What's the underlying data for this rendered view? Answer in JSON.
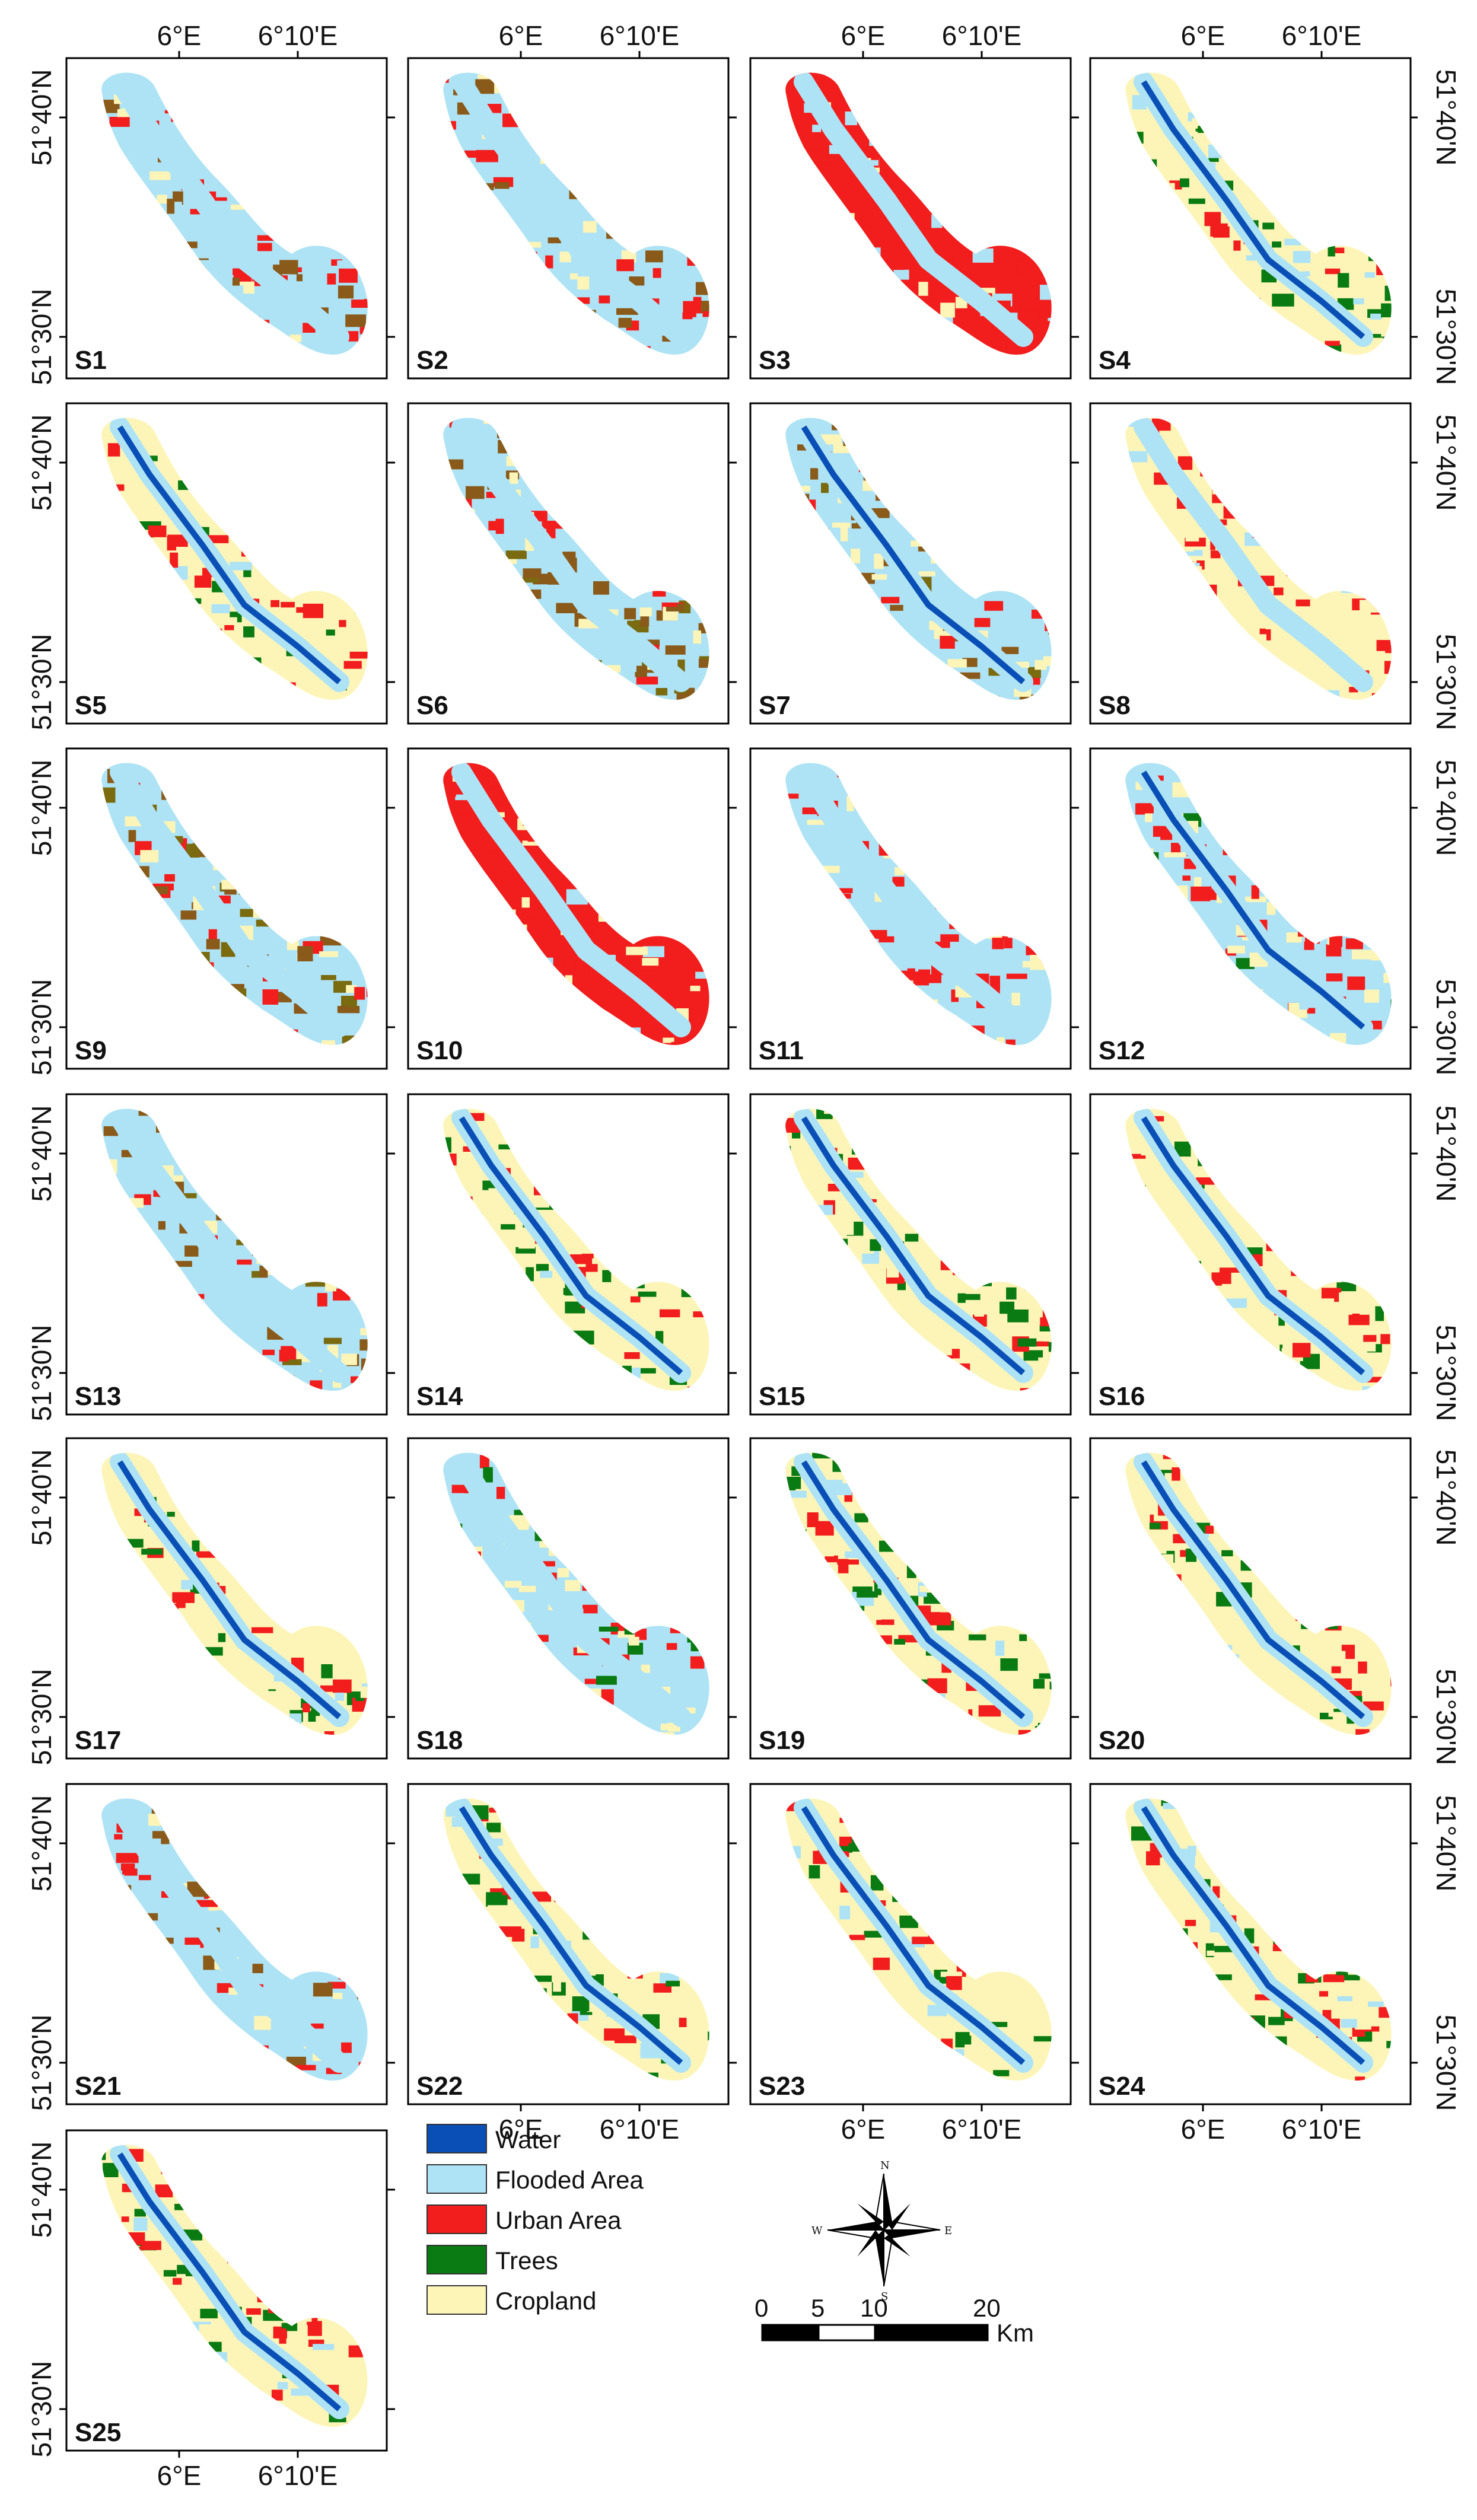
{
  "coordinates": {
    "lon_left": "6°E",
    "lon_right": "6°10'E",
    "lat_top": "51°40'N",
    "lat_bottom": "51°30'N"
  },
  "panels": [
    {
      "label": "S1",
      "scheme": "flood-urban-crop"
    },
    {
      "label": "S2",
      "scheme": "flood-urban-crop"
    },
    {
      "label": "S3",
      "scheme": "urban-dominant"
    },
    {
      "label": "S4",
      "scheme": "mixed-trees"
    },
    {
      "label": "S5",
      "scheme": "full-water"
    },
    {
      "label": "S6",
      "scheme": "flood-brown"
    },
    {
      "label": "S7",
      "scheme": "flood-brown-water"
    },
    {
      "label": "S8",
      "scheme": "urban-crop"
    },
    {
      "label": "S9",
      "scheme": "flood-brown"
    },
    {
      "label": "S10",
      "scheme": "urban-dominant"
    },
    {
      "label": "S11",
      "scheme": "urban-flood"
    },
    {
      "label": "S12",
      "scheme": "urban-flood-water"
    },
    {
      "label": "S13",
      "scheme": "flood-brown"
    },
    {
      "label": "S14",
      "scheme": "full-water"
    },
    {
      "label": "S15",
      "scheme": "full-water"
    },
    {
      "label": "S16",
      "scheme": "full-water"
    },
    {
      "label": "S17",
      "scheme": "full-water"
    },
    {
      "label": "S18",
      "scheme": "flood-green"
    },
    {
      "label": "S19",
      "scheme": "full-water"
    },
    {
      "label": "S20",
      "scheme": "full-water"
    },
    {
      "label": "S21",
      "scheme": "flood-urban-crop"
    },
    {
      "label": "S22",
      "scheme": "full-water"
    },
    {
      "label": "S23",
      "scheme": "full-water"
    },
    {
      "label": "S24",
      "scheme": "full-water"
    },
    {
      "label": "S25",
      "scheme": "full-water"
    }
  ],
  "legend": [
    {
      "label": "Water",
      "color": "#0a4fb5"
    },
    {
      "label": "Flooded Area",
      "color": "#aee3f5"
    },
    {
      "label": "Urban Area",
      "color": "#f21d1d"
    },
    {
      "label": "Trees",
      "color": "#0a7a12"
    },
    {
      "label": "Cropland",
      "color": "#fdf5b8"
    }
  ],
  "extra_colors": {
    "brown": "#8a5a1a",
    "olive": "#7a6a10"
  },
  "scale_bar": {
    "ticks": [
      "0",
      "5",
      "10",
      "20"
    ],
    "tick_values": [
      0,
      5,
      10,
      20
    ],
    "unit": "Km"
  },
  "compass": {
    "n": "N",
    "s": "S",
    "e": "E",
    "w": "W"
  }
}
